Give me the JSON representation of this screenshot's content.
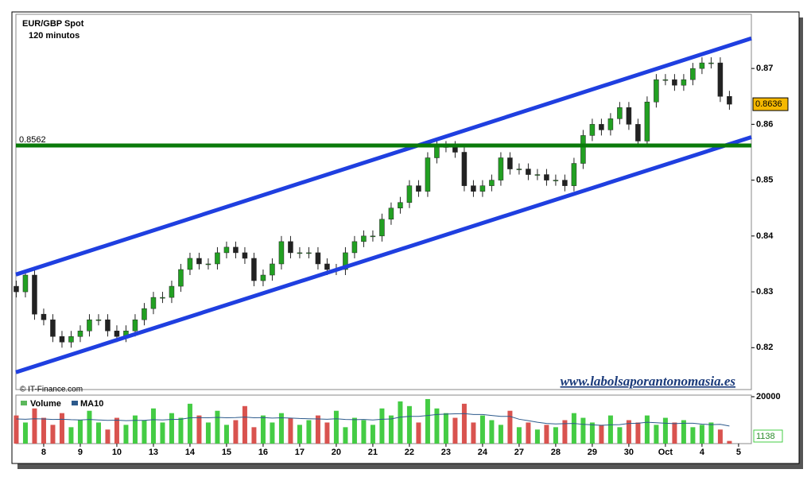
{
  "chart_data": [
    {
      "type": "candlestick",
      "title": "EUR/GBP Spot",
      "subtitle": "120 minutos",
      "source": "© IT-Finance.com",
      "watermark": "www.labolsaporantonomasia.es",
      "x": [
        -0.75,
        -0.5,
        -0.25,
        0,
        0.25,
        0.5,
        0.75,
        1,
        1.25,
        1.5,
        1.75,
        2,
        2.25,
        2.5,
        2.75,
        3,
        3.25,
        3.5,
        3.75,
        4,
        4.25,
        4.5,
        4.75,
        5,
        5.25,
        5.5,
        5.75,
        6,
        6.25,
        6.5,
        6.75,
        7,
        7.25,
        7.5,
        7.75,
        8,
        8.25,
        8.5,
        8.75,
        9,
        9.25,
        9.5,
        9.75,
        10,
        10.25,
        10.5,
        10.75,
        11,
        11.25,
        11.5,
        11.75,
        12,
        12.25,
        12.5,
        12.75,
        13,
        13.25,
        13.5,
        13.75,
        14,
        14.25,
        14.5,
        14.75,
        15,
        15.25,
        15.5,
        15.75,
        16,
        16.25,
        16.5,
        16.75,
        17,
        17.25,
        17.5,
        17.75,
        18,
        18.25,
        18.5,
        18.75
      ],
      "open": [
        0.831,
        0.83,
        0.833,
        0.826,
        0.825,
        0.822,
        0.821,
        0.822,
        0.823,
        0.825,
        0.825,
        0.823,
        0.822,
        0.823,
        0.825,
        0.827,
        0.829,
        0.829,
        0.831,
        0.834,
        0.836,
        0.835,
        0.835,
        0.837,
        0.838,
        0.837,
        0.836,
        0.832,
        0.833,
        0.835,
        0.839,
        0.837,
        0.837,
        0.837,
        0.835,
        0.834,
        0.834,
        0.837,
        0.839,
        0.84,
        0.84,
        0.843,
        0.845,
        0.846,
        0.849,
        0.848,
        0.854,
        0.856,
        0.856,
        0.855,
        0.849,
        0.848,
        0.849,
        0.85,
        0.854,
        0.852,
        0.852,
        0.851,
        0.851,
        0.85,
        0.85,
        0.849,
        0.853,
        0.858,
        0.86,
        0.859,
        0.861,
        0.863,
        0.86,
        0.857,
        0.864,
        0.868,
        0.868,
        0.867,
        0.868,
        0.87,
        0.871,
        0.871,
        0.865
      ],
      "high": [
        0.832,
        0.834,
        0.834,
        0.827,
        0.826,
        0.823,
        0.823,
        0.824,
        0.826,
        0.826,
        0.826,
        0.824,
        0.824,
        0.826,
        0.828,
        0.83,
        0.83,
        0.832,
        0.835,
        0.837,
        0.837,
        0.836,
        0.838,
        0.839,
        0.839,
        0.838,
        0.837,
        0.834,
        0.836,
        0.84,
        0.84,
        0.838,
        0.838,
        0.838,
        0.836,
        0.835,
        0.838,
        0.84,
        0.841,
        0.841,
        0.844,
        0.846,
        0.847,
        0.85,
        0.85,
        0.855,
        0.857,
        0.857,
        0.857,
        0.856,
        0.85,
        0.85,
        0.851,
        0.855,
        0.855,
        0.853,
        0.853,
        0.852,
        0.852,
        0.851,
        0.851,
        0.854,
        0.859,
        0.861,
        0.861,
        0.862,
        0.864,
        0.864,
        0.861,
        0.865,
        0.869,
        0.869,
        0.869,
        0.869,
        0.871,
        0.872,
        0.872,
        0.872,
        0.866
      ],
      "low": [
        0.829,
        0.829,
        0.825,
        0.824,
        0.821,
        0.82,
        0.82,
        0.821,
        0.822,
        0.824,
        0.822,
        0.821,
        0.821,
        0.822,
        0.824,
        0.826,
        0.828,
        0.828,
        0.83,
        0.833,
        0.834,
        0.834,
        0.834,
        0.836,
        0.836,
        0.835,
        0.831,
        0.831,
        0.832,
        0.834,
        0.836,
        0.836,
        0.836,
        0.834,
        0.833,
        0.833,
        0.833,
        0.836,
        0.838,
        0.839,
        0.839,
        0.842,
        0.844,
        0.845,
        0.847,
        0.847,
        0.853,
        0.855,
        0.854,
        0.848,
        0.847,
        0.847,
        0.848,
        0.849,
        0.851,
        0.851,
        0.85,
        0.85,
        0.849,
        0.849,
        0.848,
        0.848,
        0.852,
        0.857,
        0.858,
        0.858,
        0.86,
        0.859,
        0.856,
        0.856,
        0.863,
        0.867,
        0.866,
        0.866,
        0.867,
        0.869,
        0.87,
        0.864,
        0.8626
      ],
      "close": [
        0.83,
        0.833,
        0.826,
        0.825,
        0.822,
        0.821,
        0.822,
        0.823,
        0.825,
        0.825,
        0.823,
        0.822,
        0.823,
        0.825,
        0.827,
        0.829,
        0.829,
        0.831,
        0.834,
        0.836,
        0.835,
        0.835,
        0.837,
        0.838,
        0.837,
        0.836,
        0.832,
        0.833,
        0.835,
        0.839,
        0.837,
        0.837,
        0.837,
        0.835,
        0.834,
        0.834,
        0.837,
        0.839,
        0.84,
        0.84,
        0.843,
        0.845,
        0.846,
        0.849,
        0.848,
        0.854,
        0.856,
        0.856,
        0.855,
        0.849,
        0.848,
        0.849,
        0.85,
        0.854,
        0.852,
        0.852,
        0.851,
        0.851,
        0.85,
        0.85,
        0.849,
        0.853,
        0.858,
        0.86,
        0.859,
        0.861,
        0.863,
        0.86,
        0.857,
        0.864,
        0.868,
        0.868,
        0.867,
        0.868,
        0.87,
        0.871,
        0.871,
        0.865,
        0.8636
      ],
      "up_color": "#22a022",
      "down_color": "#222222",
      "last_price": 0.8636,
      "xlim": [
        -0.76,
        19.35
      ],
      "xticks": [
        {
          "value": 0,
          "label": "8"
        },
        {
          "value": 1,
          "label": "9"
        },
        {
          "value": 2,
          "label": "10"
        },
        {
          "value": 3,
          "label": "13"
        },
        {
          "value": 4,
          "label": "14"
        },
        {
          "value": 5,
          "label": "15"
        },
        {
          "value": 6,
          "label": "16"
        },
        {
          "value": 7,
          "label": "17"
        },
        {
          "value": 8,
          "label": "20"
        },
        {
          "value": 9,
          "label": "21"
        },
        {
          "value": 10,
          "label": "22"
        },
        {
          "value": 11,
          "label": "23"
        },
        {
          "value": 12,
          "label": "24"
        },
        {
          "value": 13,
          "label": "27"
        },
        {
          "value": 14,
          "label": "28"
        },
        {
          "value": 15,
          "label": "29"
        },
        {
          "value": 16,
          "label": "30"
        },
        {
          "value": 17,
          "label": "Oct"
        },
        {
          "value": 18,
          "label": "4"
        },
        {
          "value": 19,
          "label": "5"
        }
      ],
      "ylim": [
        0.8125,
        0.8797
      ],
      "yticks": [
        0.82,
        0.83,
        0.84,
        0.85,
        0.86,
        0.87
      ],
      "hline": {
        "value": 0.8562,
        "color": "#0a7a0a"
      },
      "trendlines": [
        {
          "x": [
            -0.76,
            19.35
          ],
          "y": [
            0.8331,
            0.8754
          ],
          "color": "#1f3fe0"
        },
        {
          "x": [
            -0.76,
            19.35
          ],
          "y": [
            0.8156,
            0.8577
          ],
          "color": "#1f3fe0"
        }
      ]
    },
    {
      "type": "bar",
      "series": [
        {
          "name": "Volume",
          "color": "#5cb85c",
          "up_color": "#44cc44",
          "down_color": "#d9534f",
          "values": [
            12000,
            9000,
            15000,
            11000,
            8000,
            13000,
            7000,
            10000,
            14000,
            9000,
            6000,
            11000,
            8000,
            12000,
            10000,
            15000,
            9000,
            13000,
            11000,
            17000,
            12000,
            9000,
            14000,
            8000,
            10000,
            16000,
            7000,
            12000,
            9000,
            13000,
            11000,
            8000,
            10000,
            12000,
            9000,
            14000,
            7000,
            11000,
            10000,
            8000,
            15000,
            12000,
            18000,
            16000,
            9000,
            19000,
            15000,
            13000,
            11000,
            17000,
            9000,
            12000,
            10000,
            8000,
            14000,
            7000,
            9000,
            6000,
            8000,
            7000,
            10000,
            13000,
            11000,
            9000,
            8000,
            12000,
            7000,
            10000,
            9000,
            12000,
            8000,
            11000,
            9000,
            10000,
            7000,
            8000,
            9000,
            6000,
            1138
          ]
        },
        {
          "name": "MA10",
          "color": "#2c5a8c",
          "values": [
            10500,
            10400,
            10600,
            10500,
            10300,
            10400,
            10200,
            10100,
            10300,
            10100,
            9900,
            10000,
            9800,
            9900,
            9900,
            10200,
            10100,
            10300,
            10400,
            11000,
            11100,
            11000,
            11200,
            11000,
            11100,
            11300,
            11000,
            11100,
            10900,
            11000,
            10900,
            10700,
            10600,
            10500,
            10400,
            10600,
            10300,
            10200,
            10300,
            10100,
            10400,
            10500,
            11300,
            11600,
            11600,
            12000,
            12400,
            12600,
            12700,
            12800,
            12400,
            12400,
            12000,
            11600,
            11600,
            10400,
            9800,
            9100,
            8600,
            8400,
            8500,
            8600,
            8200,
            8000,
            7800,
            8000,
            8100,
            8600,
            8700,
            9100,
            8900,
            8700,
            8500,
            8700,
            8700,
            8300,
            8100,
            8200,
            7500
          ]
        }
      ],
      "ylim": [
        0,
        20000
      ],
      "yticks": [
        20000
      ]
    }
  ]
}
